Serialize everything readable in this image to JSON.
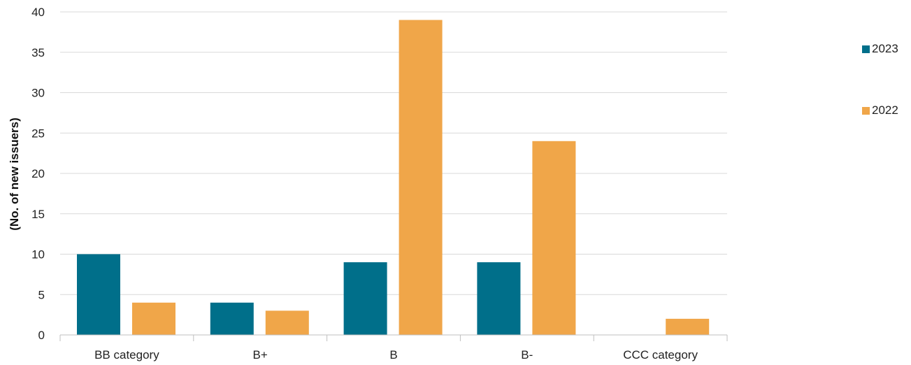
{
  "chart_data": {
    "type": "bar",
    "categories": [
      "BB category",
      "B+",
      "B",
      "B-",
      "CCC category"
    ],
    "series": [
      {
        "name": "2023",
        "color": "#006F8A",
        "values": [
          10,
          4,
          9,
          9,
          0
        ]
      },
      {
        "name": "2022",
        "color": "#F0A649",
        "values": [
          4,
          3,
          39,
          24,
          2
        ]
      }
    ],
    "ylabel": "(No. of new issuers)",
    "xlabel": "",
    "ylim": [
      0,
      40
    ],
    "yticks": [
      0,
      5,
      10,
      15,
      20,
      25,
      30,
      35,
      40
    ],
    "grid": true,
    "legend_position": "right"
  }
}
